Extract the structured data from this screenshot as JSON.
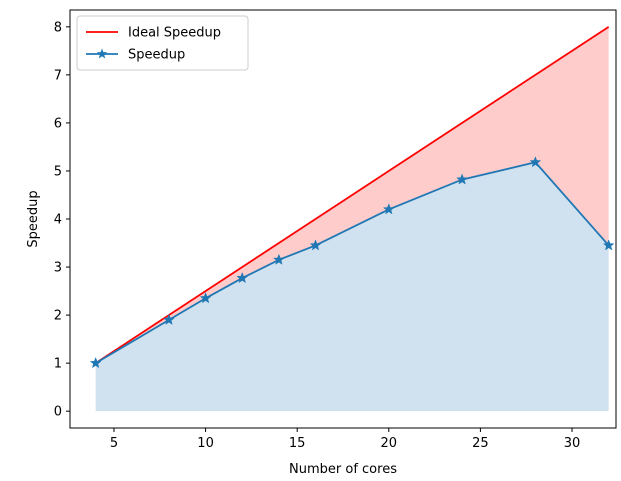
{
  "chart_data": {
    "type": "line",
    "title": "",
    "xlabel": "Number of cores",
    "ylabel": "Speedup",
    "xlim": [
      2.6,
      32.4
    ],
    "ylim": [
      -0.35,
      8.35
    ],
    "xticks": [
      5,
      10,
      15,
      20,
      25,
      30
    ],
    "yticks": [
      0,
      1,
      2,
      3,
      4,
      5,
      6,
      7,
      8
    ],
    "grid": false,
    "legend_position": "top-left",
    "series": [
      {
        "name": "Ideal Speedup",
        "color": "#ff0000",
        "marker": "none",
        "fill_color": "#ffcccc",
        "x": [
          4,
          32
        ],
        "y": [
          1,
          8
        ]
      },
      {
        "name": "Speedup",
        "color": "#1f77b4",
        "marker": "star",
        "fill_color": "#d0e1ef",
        "x": [
          4,
          8,
          10,
          12,
          14,
          16,
          20,
          24,
          28,
          32
        ],
        "y": [
          1.0,
          1.9,
          2.35,
          2.77,
          3.15,
          3.45,
          4.2,
          4.82,
          5.18,
          3.45
        ]
      }
    ]
  }
}
